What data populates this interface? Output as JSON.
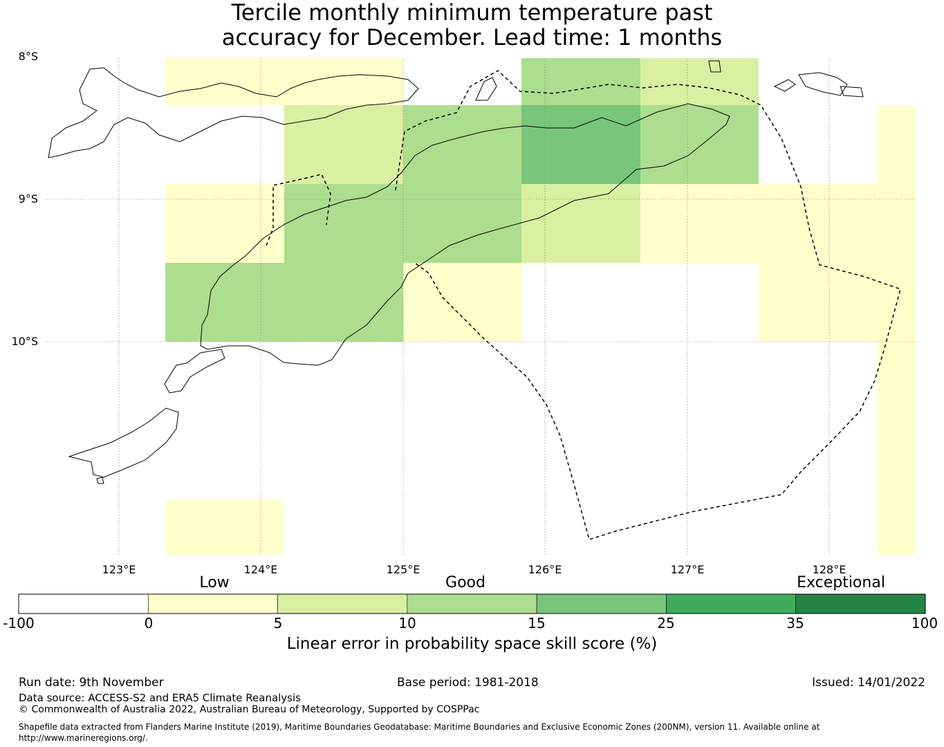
{
  "title": {
    "line1": "Tercile monthly minimum temperature past",
    "line2": "accuracy for December. Lead time: 1 months"
  },
  "map": {
    "lat_labels": [
      "8°S",
      "9°S",
      "10°S"
    ],
    "lon_labels": [
      "123°E",
      "124°E",
      "125°E",
      "126°E",
      "127°E",
      "128°E"
    ],
    "colors": [
      "#ffffff",
      "#ffffcc",
      "#d9f0a3",
      "#addd8e",
      "#78c679",
      "#41ab5d",
      "#238443"
    ],
    "grid_cells": [
      {
        "cells": [
          -1,
          1,
          1,
          0,
          3,
          2,
          -1,
          0
        ]
      },
      {
        "cells": [
          0,
          -1,
          2,
          3,
          4,
          3,
          -1,
          1
        ]
      },
      {
        "cells": [
          -1,
          1,
          3,
          3,
          2,
          1,
          1,
          1
        ]
      },
      {
        "cells": [
          -1,
          3,
          3,
          1,
          0,
          0,
          1,
          1
        ]
      },
      {
        "cells": [
          0,
          0,
          -1,
          -1,
          -1,
          -1,
          0,
          1
        ]
      },
      {
        "cells": [
          0,
          -1,
          -1,
          -1,
          -1,
          -1,
          0,
          1
        ]
      },
      {
        "cells": [
          0,
          1,
          -1,
          0,
          0,
          0,
          0,
          1
        ]
      }
    ]
  },
  "legend": {
    "categories": [
      "Low",
      "Good",
      "Exceptional"
    ],
    "ticks": [
      "-100",
      "0",
      "5",
      "10",
      "15",
      "25",
      "35",
      "100"
    ],
    "colors": [
      "#ffffff",
      "#ffffcc",
      "#d9f0a3",
      "#addd8e",
      "#78c679",
      "#41ab5d",
      "#238443"
    ],
    "title": "Linear error in probability space skill score (%)"
  },
  "footer": {
    "run_date": "Run date: 9th November",
    "base_period": "Base period: 1981-2018",
    "issued": "Issued: 14/01/2022",
    "data_source": "Data source: ACCESS-S2 and ERA5 Climate Reanalysis",
    "copyright": "© Commonwealth of Australia 2022, Australian Bureau of Meteorology, Supported by COSPPac",
    "shapefile": "Shapefile data extracted from Flanders Marine Institute (2019), Maritime Boundaries Geodatabase: Maritime Boundaries and Exclusive Economic Zones (200NM), version 11. Available online at http://www.marineregions.org/."
  }
}
